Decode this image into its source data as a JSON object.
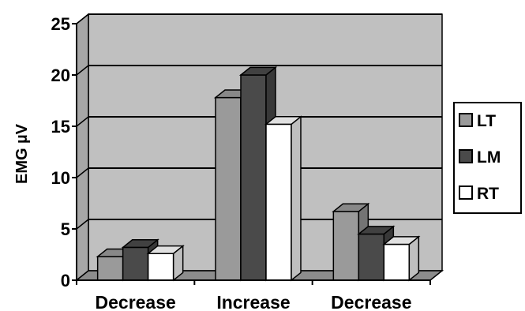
{
  "chart_data": {
    "type": "bar",
    "ylabel": "EMG µV",
    "categories": [
      "Decrease",
      "Increase",
      "Decrease"
    ],
    "series": [
      {
        "name": "LT",
        "values": [
          2.3,
          17.8,
          6.7
        ]
      },
      {
        "name": "LM",
        "values": [
          3.2,
          20.0,
          4.5
        ]
      },
      {
        "name": "RT",
        "values": [
          2.6,
          15.2,
          3.5
        ]
      }
    ],
    "ylim": [
      0,
      25
    ],
    "yticks": [
      0,
      5,
      10,
      15,
      20,
      25
    ],
    "grid": true,
    "legend": "right",
    "colors": {
      "LT": "#9a9a9a",
      "LM": "#4a4a4a",
      "RT": "#ffffff",
      "plot_background": "#c0c0c0"
    }
  }
}
